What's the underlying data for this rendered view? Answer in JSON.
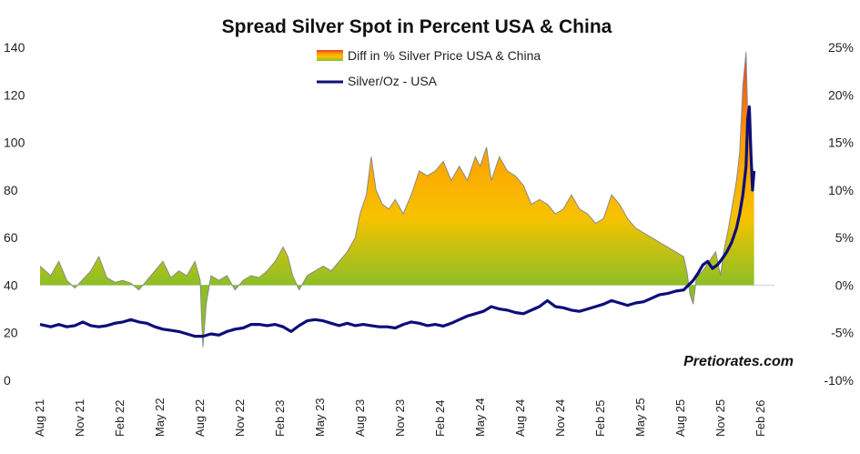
{
  "chart_data": {
    "type": "area",
    "title": "Spread Silver Spot in Percent USA & China",
    "watermark": "Pretiorates.com",
    "left_axis": {
      "min": 0,
      "max": 140,
      "ticks": [
        0,
        20,
        40,
        60,
        80,
        100,
        120,
        140
      ]
    },
    "right_axis": {
      "min": -10,
      "max": 25,
      "ticks": [
        -10,
        -5,
        0,
        5,
        10,
        15,
        20,
        25
      ],
      "tick_labels": [
        "-10%",
        "-5%",
        "0%",
        "5%",
        "10%",
        "15%",
        "20%",
        "25%"
      ]
    },
    "x_axis": {
      "start": 2021.583,
      "end": 2026.167,
      "ticks": [
        {
          "label": "Aug 21",
          "t": 2021.583
        },
        {
          "label": "Nov 21",
          "t": 2021.833
        },
        {
          "label": "Feb 22",
          "t": 2022.083
        },
        {
          "label": "May 22",
          "t": 2022.333
        },
        {
          "label": "Aug 22",
          "t": 2022.583
        },
        {
          "label": "Nov 22",
          "t": 2022.833
        },
        {
          "label": "Feb 23",
          "t": 2023.083
        },
        {
          "label": "May 23",
          "t": 2023.333
        },
        {
          "label": "Aug 23",
          "t": 2023.583
        },
        {
          "label": "Nov 23",
          "t": 2023.833
        },
        {
          "label": "Feb 24",
          "t": 2024.083
        },
        {
          "label": "May 24",
          "t": 2024.333
        },
        {
          "label": "Aug 24",
          "t": 2024.583
        },
        {
          "label": "Nov 24",
          "t": 2024.833
        },
        {
          "label": "Feb 25",
          "t": 2025.083
        },
        {
          "label": "May 25",
          "t": 2025.333
        },
        {
          "label": "Aug 25",
          "t": 2025.583
        },
        {
          "label": "Nov 25",
          "t": 2025.833
        },
        {
          "label": "Feb 26",
          "t": 2026.083
        }
      ]
    },
    "series": [
      {
        "name": "Diff in % Silver Price USA & China",
        "axis": "right",
        "type": "area",
        "colors": {
          "low": "#8cbf26",
          "mid": "#f6c200",
          "high": "#ff9a00",
          "peak": "#e8362a",
          "stroke": "#8a8a8a"
        },
        "points": [
          [
            2021.583,
            2.0
          ],
          [
            2021.65,
            1.0
          ],
          [
            2021.7,
            2.5
          ],
          [
            2021.75,
            0.5
          ],
          [
            2021.8,
            -0.3
          ],
          [
            2021.85,
            0.6
          ],
          [
            2021.9,
            1.5
          ],
          [
            2021.95,
            3.0
          ],
          [
            2022.0,
            0.8
          ],
          [
            2022.05,
            0.3
          ],
          [
            2022.1,
            0.5
          ],
          [
            2022.15,
            0.2
          ],
          [
            2022.2,
            -0.5
          ],
          [
            2022.25,
            0.5
          ],
          [
            2022.3,
            1.5
          ],
          [
            2022.35,
            2.5
          ],
          [
            2022.4,
            0.8
          ],
          [
            2022.45,
            1.5
          ],
          [
            2022.5,
            1.0
          ],
          [
            2022.55,
            2.5
          ],
          [
            2022.583,
            0.5
          ],
          [
            2022.59,
            -3.0
          ],
          [
            2022.6,
            -6.5
          ],
          [
            2022.62,
            -2.0
          ],
          [
            2022.65,
            1.0
          ],
          [
            2022.7,
            0.5
          ],
          [
            2022.75,
            1.0
          ],
          [
            2022.8,
            -0.5
          ],
          [
            2022.85,
            0.5
          ],
          [
            2022.9,
            1.0
          ],
          [
            2022.95,
            0.8
          ],
          [
            2023.0,
            1.5
          ],
          [
            2023.05,
            2.5
          ],
          [
            2023.1,
            4.0
          ],
          [
            2023.13,
            3.0
          ],
          [
            2023.16,
            1.0
          ],
          [
            2023.2,
            -0.5
          ],
          [
            2023.25,
            1.0
          ],
          [
            2023.3,
            1.5
          ],
          [
            2023.35,
            2.0
          ],
          [
            2023.4,
            1.5
          ],
          [
            2023.45,
            2.5
          ],
          [
            2023.5,
            3.5
          ],
          [
            2023.55,
            5.0
          ],
          [
            2023.58,
            7.5
          ],
          [
            2023.62,
            9.5
          ],
          [
            2023.65,
            13.5
          ],
          [
            2023.68,
            10.0
          ],
          [
            2023.72,
            8.5
          ],
          [
            2023.76,
            8.0
          ],
          [
            2023.8,
            9.0
          ],
          [
            2023.85,
            7.5
          ],
          [
            2023.9,
            9.5
          ],
          [
            2023.95,
            12.0
          ],
          [
            2024.0,
            11.5
          ],
          [
            2024.05,
            12.0
          ],
          [
            2024.1,
            13.0
          ],
          [
            2024.15,
            11.0
          ],
          [
            2024.2,
            12.5
          ],
          [
            2024.25,
            11.0
          ],
          [
            2024.3,
            13.5
          ],
          [
            2024.33,
            12.5
          ],
          [
            2024.37,
            14.5
          ],
          [
            2024.4,
            11.0
          ],
          [
            2024.45,
            13.5
          ],
          [
            2024.5,
            12.0
          ],
          [
            2024.55,
            11.5
          ],
          [
            2024.6,
            10.5
          ],
          [
            2024.65,
            8.5
          ],
          [
            2024.7,
            9.0
          ],
          [
            2024.75,
            8.5
          ],
          [
            2024.8,
            7.5
          ],
          [
            2024.85,
            8.0
          ],
          [
            2024.9,
            9.5
          ],
          [
            2024.95,
            8.0
          ],
          [
            2025.0,
            7.5
          ],
          [
            2025.05,
            6.5
          ],
          [
            2025.1,
            7.0
          ],
          [
            2025.15,
            9.5
          ],
          [
            2025.2,
            8.5
          ],
          [
            2025.25,
            7.0
          ],
          [
            2025.3,
            6.0
          ],
          [
            2025.35,
            5.5
          ],
          [
            2025.4,
            5.0
          ],
          [
            2025.45,
            4.5
          ],
          [
            2025.5,
            4.0
          ],
          [
            2025.55,
            3.5
          ],
          [
            2025.6,
            3.0
          ],
          [
            2025.62,
            1.5
          ],
          [
            2025.64,
            -1.0
          ],
          [
            2025.66,
            -2.0
          ],
          [
            2025.68,
            0.8
          ],
          [
            2025.72,
            1.5
          ],
          [
            2025.76,
            2.5
          ],
          [
            2025.8,
            3.5
          ],
          [
            2025.83,
            1.0
          ],
          [
            2025.85,
            3.5
          ],
          [
            2025.88,
            6.0
          ],
          [
            2025.91,
            9.0
          ],
          [
            2025.93,
            11.0
          ],
          [
            2025.95,
            14.0
          ],
          [
            2025.97,
            21.0
          ],
          [
            2025.99,
            24.5
          ],
          [
            2026.0,
            18.0
          ],
          [
            2026.02,
            14.0
          ],
          [
            2026.04,
            11.0
          ]
        ]
      },
      {
        "name": "Silver/Oz - USA",
        "axis": "left",
        "type": "line",
        "color": "#0d0d7a",
        "points": [
          [
            2021.583,
            23.5
          ],
          [
            2021.65,
            22.5
          ],
          [
            2021.7,
            23.5
          ],
          [
            2021.75,
            22.5
          ],
          [
            2021.8,
            23.0
          ],
          [
            2021.85,
            24.5
          ],
          [
            2021.9,
            23.0
          ],
          [
            2021.95,
            22.5
          ],
          [
            2022.0,
            23.0
          ],
          [
            2022.05,
            24.0
          ],
          [
            2022.1,
            24.5
          ],
          [
            2022.15,
            25.5
          ],
          [
            2022.2,
            24.5
          ],
          [
            2022.25,
            24.0
          ],
          [
            2022.3,
            22.5
          ],
          [
            2022.35,
            21.5
          ],
          [
            2022.4,
            21.0
          ],
          [
            2022.45,
            20.5
          ],
          [
            2022.5,
            19.5
          ],
          [
            2022.55,
            18.5
          ],
          [
            2022.6,
            18.5
          ],
          [
            2022.65,
            19.5
          ],
          [
            2022.7,
            19.0
          ],
          [
            2022.75,
            20.5
          ],
          [
            2022.8,
            21.5
          ],
          [
            2022.85,
            22.0
          ],
          [
            2022.9,
            23.5
          ],
          [
            2022.95,
            23.5
          ],
          [
            2023.0,
            23.0
          ],
          [
            2023.05,
            23.5
          ],
          [
            2023.1,
            22.5
          ],
          [
            2023.15,
            20.5
          ],
          [
            2023.2,
            23.0
          ],
          [
            2023.25,
            25.0
          ],
          [
            2023.3,
            25.5
          ],
          [
            2023.35,
            25.0
          ],
          [
            2023.4,
            24.0
          ],
          [
            2023.45,
            23.0
          ],
          [
            2023.5,
            24.0
          ],
          [
            2023.55,
            23.0
          ],
          [
            2023.6,
            23.5
          ],
          [
            2023.65,
            23.0
          ],
          [
            2023.7,
            22.5
          ],
          [
            2023.75,
            22.5
          ],
          [
            2023.8,
            22.0
          ],
          [
            2023.85,
            23.5
          ],
          [
            2023.9,
            24.5
          ],
          [
            2023.95,
            24.0
          ],
          [
            2024.0,
            23.0
          ],
          [
            2024.05,
            23.5
          ],
          [
            2024.1,
            22.8
          ],
          [
            2024.15,
            24.0
          ],
          [
            2024.2,
            25.5
          ],
          [
            2024.25,
            27.0
          ],
          [
            2024.3,
            28.0
          ],
          [
            2024.35,
            29.0
          ],
          [
            2024.4,
            31.0
          ],
          [
            2024.45,
            30.0
          ],
          [
            2024.5,
            29.5
          ],
          [
            2024.55,
            28.5
          ],
          [
            2024.6,
            28.0
          ],
          [
            2024.65,
            29.5
          ],
          [
            2024.7,
            31.0
          ],
          [
            2024.75,
            33.5
          ],
          [
            2024.8,
            31.0
          ],
          [
            2024.85,
            30.5
          ],
          [
            2024.9,
            29.5
          ],
          [
            2024.95,
            29.0
          ],
          [
            2025.0,
            30.0
          ],
          [
            2025.05,
            31.0
          ],
          [
            2025.1,
            32.0
          ],
          [
            2025.15,
            33.5
          ],
          [
            2025.2,
            32.5
          ],
          [
            2025.25,
            31.5
          ],
          [
            2025.3,
            32.5
          ],
          [
            2025.35,
            33.0
          ],
          [
            2025.4,
            34.5
          ],
          [
            2025.45,
            36.0
          ],
          [
            2025.5,
            36.5
          ],
          [
            2025.55,
            37.5
          ],
          [
            2025.6,
            38.0
          ],
          [
            2025.63,
            40.0
          ],
          [
            2025.66,
            42.0
          ],
          [
            2025.69,
            45.0
          ],
          [
            2025.72,
            48.5
          ],
          [
            2025.75,
            50.0
          ],
          [
            2025.78,
            47.0
          ],
          [
            2025.81,
            48.5
          ],
          [
            2025.84,
            51.0
          ],
          [
            2025.87,
            54.0
          ],
          [
            2025.9,
            58.0
          ],
          [
            2025.93,
            64.0
          ],
          [
            2025.95,
            70.0
          ],
          [
            2025.97,
            78.0
          ],
          [
            2025.99,
            90.0
          ],
          [
            2026.0,
            110.0
          ],
          [
            2026.01,
            115.0
          ],
          [
            2026.02,
            96.0
          ],
          [
            2026.03,
            80.0
          ],
          [
            2026.04,
            88.0
          ]
        ]
      }
    ],
    "legend": {
      "position": "top-center",
      "items": [
        "Diff in % Silver Price USA & China",
        "Silver/Oz - USA"
      ]
    }
  }
}
